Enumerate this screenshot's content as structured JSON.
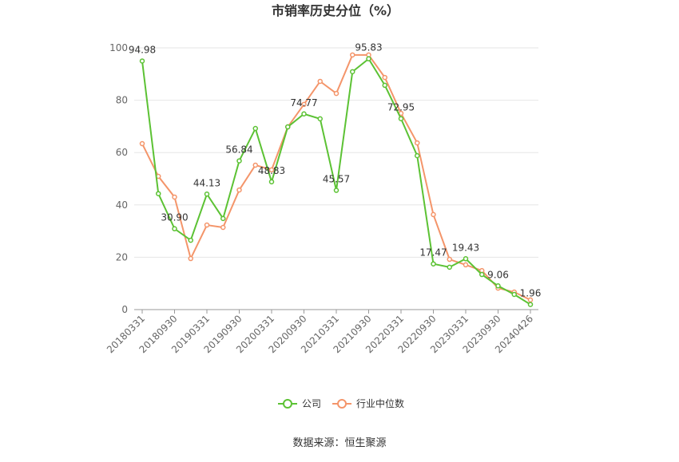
{
  "chart_data": {
    "type": "line",
    "title": "市销率历史分位（%）",
    "source": "数据来源：恒生聚源",
    "categories": [
      "20180331",
      null,
      "20180930",
      null,
      "20190331",
      null,
      "20190930",
      null,
      "20200331",
      null,
      "20200930",
      null,
      "20210331",
      null,
      "20210930",
      null,
      "20220331",
      null,
      "20220930",
      null,
      "20230331",
      null,
      "20230930",
      null,
      "20240426"
    ],
    "series": [
      {
        "name": "公司",
        "color": "#5cc234",
        "values": [
          94.98,
          44.3,
          30.9,
          26.5,
          44.13,
          34.8,
          56.84,
          69.2,
          48.83,
          69.8,
          74.77,
          72.9,
          45.57,
          90.9,
          95.83,
          85.7,
          72.95,
          58.8,
          17.47,
          16.2,
          19.43,
          13.4,
          9.06,
          5.8,
          1.96
        ],
        "value_labels": [
          "94.98",
          null,
          "30.90",
          null,
          "44.13",
          null,
          "56.84",
          null,
          "48.83",
          null,
          "74.77",
          null,
          "45.57",
          null,
          "95.83",
          null,
          "72.95",
          null,
          "17.47",
          null,
          "19.43",
          null,
          "9.06",
          null,
          "1.96"
        ]
      },
      {
        "name": "行业中位数",
        "color": "#f4956a",
        "values": [
          63.4,
          50.9,
          43.0,
          19.5,
          32.3,
          31.4,
          45.7,
          55.2,
          53.4,
          69.8,
          78.4,
          87.2,
          82.6,
          97.3,
          97.3,
          88.7,
          75.0,
          63.7,
          36.3,
          19.2,
          17.1,
          14.9,
          8.2,
          6.7,
          3.7
        ]
      }
    ],
    "ylim": [
      0,
      100
    ],
    "yticks": [
      0,
      20,
      40,
      60,
      80,
      100
    ],
    "grid": true
  }
}
